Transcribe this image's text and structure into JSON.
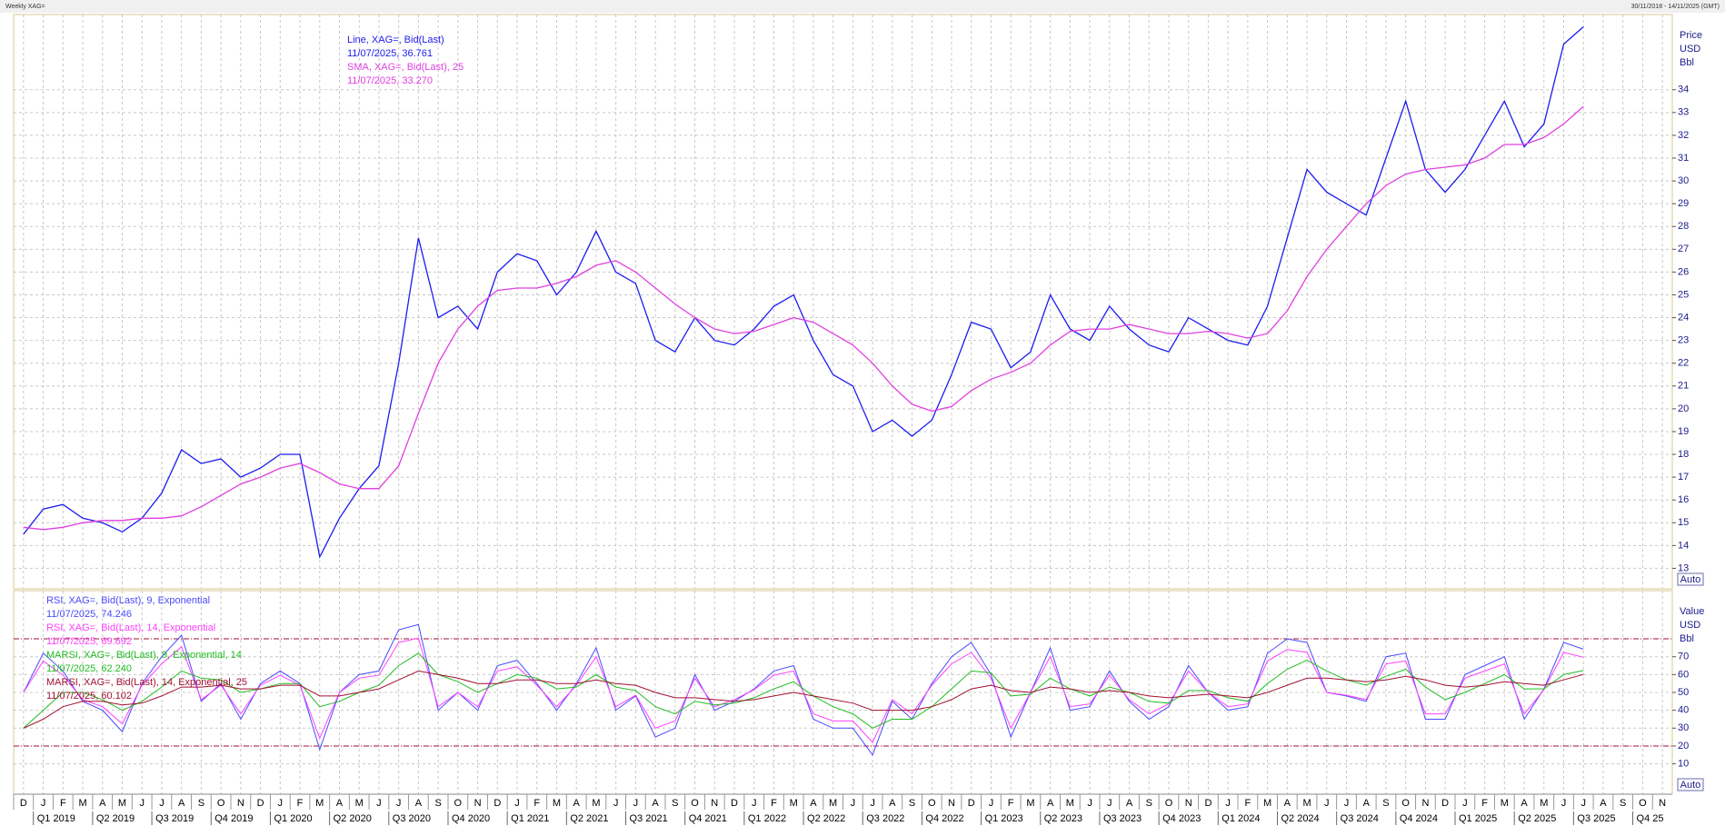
{
  "header": {
    "title": "Weekly XAG=",
    "range": "30/11/2018 - 14/11/2025 (GMT)"
  },
  "chart_data": [
    {
      "type": "line",
      "axis_label": [
        "Price",
        "USD",
        "Bbl"
      ],
      "button": "Auto",
      "ylim": [
        12.1,
        37.3
      ],
      "yticks": [
        13,
        14,
        15,
        16,
        17,
        18,
        19,
        20,
        21,
        22,
        23,
        24,
        25,
        26,
        27,
        28,
        29,
        30,
        31,
        32,
        33,
        34
      ],
      "grid": true,
      "series": [
        {
          "name": "Line, XAG=, Bid(Last)",
          "detail": "11/07/2025, 36.761",
          "color": "#1c1cf0",
          "values": [
            14.5,
            15.6,
            15.8,
            15.2,
            15.0,
            14.6,
            15.2,
            16.3,
            18.2,
            17.6,
            17.8,
            17.0,
            17.4,
            18.0,
            18.0,
            13.5,
            15.2,
            16.5,
            17.5,
            22.0,
            27.5,
            24.0,
            24.5,
            23.5,
            26.0,
            26.8,
            26.5,
            25.0,
            26.0,
            27.8,
            26.0,
            25.5,
            23.0,
            22.5,
            24.0,
            23.0,
            22.8,
            23.5,
            24.5,
            25.0,
            23.0,
            21.5,
            21.0,
            19.0,
            19.5,
            18.8,
            19.5,
            21.5,
            23.8,
            23.5,
            21.8,
            22.5,
            25.0,
            23.5,
            23.0,
            24.5,
            23.5,
            22.8,
            22.5,
            24.0,
            23.5,
            23.0,
            22.8,
            24.5,
            27.5,
            30.5,
            29.5,
            29.0,
            28.5,
            31.0,
            33.5,
            30.5,
            29.5,
            30.5,
            32.0,
            33.5,
            31.5,
            32.5,
            36.0,
            36.761,
            null,
            null,
            null,
            null
          ]
        },
        {
          "name": "SMA, XAG=, Bid(Last),  25",
          "detail": "11/07/2025, 33.270",
          "color": "#e040e0",
          "values": [
            14.8,
            14.7,
            14.8,
            15.0,
            15.1,
            15.1,
            15.2,
            15.2,
            15.3,
            15.7,
            16.2,
            16.7,
            17.0,
            17.4,
            17.6,
            17.2,
            16.7,
            16.5,
            16.5,
            17.5,
            19.8,
            22.0,
            23.5,
            24.5,
            25.2,
            25.3,
            25.3,
            25.5,
            25.8,
            26.3,
            26.5,
            26.0,
            25.3,
            24.6,
            24.0,
            23.5,
            23.3,
            23.4,
            23.7,
            24.0,
            23.8,
            23.3,
            22.8,
            22.0,
            21.0,
            20.2,
            19.9,
            20.1,
            20.8,
            21.3,
            21.6,
            22.0,
            22.8,
            23.4,
            23.5,
            23.5,
            23.7,
            23.5,
            23.3,
            23.3,
            23.4,
            23.3,
            23.1,
            23.3,
            24.3,
            25.8,
            27.0,
            28.0,
            29.0,
            29.8,
            30.3,
            30.5,
            30.6,
            30.7,
            31.0,
            31.6,
            31.6,
            31.9,
            32.5,
            33.27,
            null,
            null,
            null,
            null
          ]
        }
      ]
    },
    {
      "type": "line",
      "axis_label": [
        "Value",
        "USD",
        "Bbl"
      ],
      "button": "Auto",
      "ylim": [
        -7,
        107
      ],
      "yticks": [
        10,
        20,
        30,
        40,
        50,
        60,
        70
      ],
      "bands": [
        20,
        80
      ],
      "grid": true,
      "categories": [
        "D",
        "J",
        "F",
        "M",
        "A",
        "M",
        "J",
        "J",
        "A",
        "S",
        "O",
        "N",
        "D",
        "J",
        "F",
        "M",
        "A",
        "M",
        "J",
        "J",
        "A",
        "S",
        "O",
        "N",
        "D",
        "J",
        "F",
        "M",
        "A",
        "M",
        "J",
        "J",
        "A",
        "S",
        "O",
        "N",
        "D",
        "J",
        "F",
        "M",
        "A",
        "M",
        "J",
        "J",
        "A",
        "S",
        "O",
        "N",
        "D",
        "J",
        "F",
        "M",
        "A",
        "M",
        "J",
        "J",
        "A",
        "S",
        "O",
        "N",
        "D",
        "J",
        "F",
        "M",
        "A",
        "M",
        "J",
        "J",
        "A",
        "S",
        "O",
        "N",
        "D",
        "J",
        "F",
        "M",
        "A",
        "M",
        "J",
        "J",
        "A",
        "S",
        "O",
        "N"
      ],
      "quarters": [
        "Q1 2019",
        "Q2 2019",
        "Q3 2019",
        "Q4 2019",
        "Q1 2020",
        "Q2 2020",
        "Q3 2020",
        "Q4 2020",
        "Q1 2021",
        "Q2 2021",
        "Q3 2021",
        "Q4 2021",
        "Q1 2022",
        "Q2 2022",
        "Q3 2022",
        "Q4 2022",
        "Q1 2023",
        "Q2 2023",
        "Q3 2023",
        "Q4 2023",
        "Q1 2024",
        "Q2 2024",
        "Q3 2024",
        "Q4 2024",
        "Q1 2025",
        "Q2 2025",
        "Q3 2025",
        "Q4 25"
      ],
      "series": [
        {
          "name": "RSI, XAG=, Bid(Last),  9, Exponential",
          "detail": "11/07/2025, 74.246",
          "color": "#4a4aff",
          "values": [
            50,
            72,
            62,
            45,
            40,
            28,
            55,
            70,
            82,
            45,
            55,
            35,
            55,
            62,
            55,
            18,
            50,
            60,
            62,
            85,
            88,
            40,
            50,
            40,
            65,
            68,
            55,
            40,
            55,
            75,
            40,
            48,
            25,
            30,
            60,
            40,
            45,
            52,
            62,
            65,
            35,
            30,
            30,
            15,
            45,
            35,
            55,
            70,
            78,
            60,
            25,
            50,
            75,
            40,
            42,
            62,
            45,
            35,
            42,
            65,
            50,
            40,
            42,
            72,
            80,
            78,
            50,
            48,
            45,
            70,
            72,
            35,
            35,
            60,
            65,
            70,
            35,
            52,
            78,
            74.246,
            null,
            null,
            null,
            null
          ]
        },
        {
          "name": "RSI, XAG=, Bid(Last),  14, Exponential",
          "detail": "11/07/2025, 69.692",
          "color": "#ff40ff",
          "values": [
            50,
            67.6,
            59.6,
            46,
            42,
            32.4,
            54,
            66,
            75.6,
            46,
            54,
            38,
            54,
            59.6,
            54,
            24.4,
            50,
            58,
            59.6,
            78,
            80.4,
            42,
            50,
            42,
            62,
            64.4,
            54,
            42,
            54,
            70,
            42,
            48.4,
            30,
            34,
            58,
            42,
            46,
            51.6,
            59.6,
            62,
            38,
            34,
            34,
            22,
            46,
            38,
            54,
            66,
            72.4,
            58,
            30,
            50,
            70,
            42,
            43.6,
            59.6,
            46,
            38,
            43.6,
            62,
            50,
            42,
            43.6,
            67.6,
            74,
            72.4,
            50,
            48.4,
            46,
            66,
            67.6,
            38,
            38,
            58,
            62,
            66,
            38,
            51.6,
            72.4,
            69.692,
            null,
            null,
            null,
            null
          ]
        },
        {
          "name": "MARSI, XAG=, Bid(Last),  9, Exponential, 14",
          "detail": "11/07/2025, 62.240",
          "color": "#22bb22",
          "values": [
            30,
            40,
            50,
            50,
            46,
            40,
            45,
            53,
            62,
            58,
            57,
            50,
            52,
            55,
            55,
            42,
            45,
            50,
            54,
            65,
            72,
            60,
            56,
            50,
            55,
            60,
            58,
            52,
            53,
            60,
            53,
            51,
            42,
            38,
            45,
            43,
            44,
            47,
            52,
            56,
            48,
            42,
            38,
            30,
            35,
            35,
            42,
            52,
            62,
            61,
            48,
            49,
            58,
            52,
            48,
            53,
            50,
            45,
            44,
            51,
            51,
            47,
            45,
            55,
            63,
            68,
            62,
            57,
            54,
            59,
            63,
            53,
            46,
            50,
            55,
            60,
            52,
            52,
            60,
            62.24,
            null,
            null,
            null,
            null
          ]
        },
        {
          "name": "MARSI, XAG=, Bid(Last),  14, Exponential, 25",
          "detail": "11/07/2025, 60.102",
          "color": "#a01030",
          "values": [
            30,
            35,
            42,
            45,
            45,
            43,
            44,
            48,
            53,
            53,
            54,
            52,
            52,
            54,
            54,
            48,
            48,
            50,
            52,
            57,
            62,
            60,
            58,
            55,
            55,
            57,
            57,
            55,
            55,
            57,
            55,
            54,
            50,
            47,
            47,
            46,
            45,
            46,
            48,
            50,
            48,
            46,
            44,
            40,
            40,
            40,
            42,
            46,
            52,
            54,
            51,
            50,
            53,
            52,
            50,
            51,
            50,
            48,
            47,
            48,
            49,
            48,
            47,
            50,
            54,
            58,
            58,
            57,
            56,
            57,
            59,
            57,
            54,
            53,
            54,
            56,
            55,
            54,
            57,
            60.102,
            null,
            null,
            null,
            null
          ]
        }
      ]
    }
  ]
}
